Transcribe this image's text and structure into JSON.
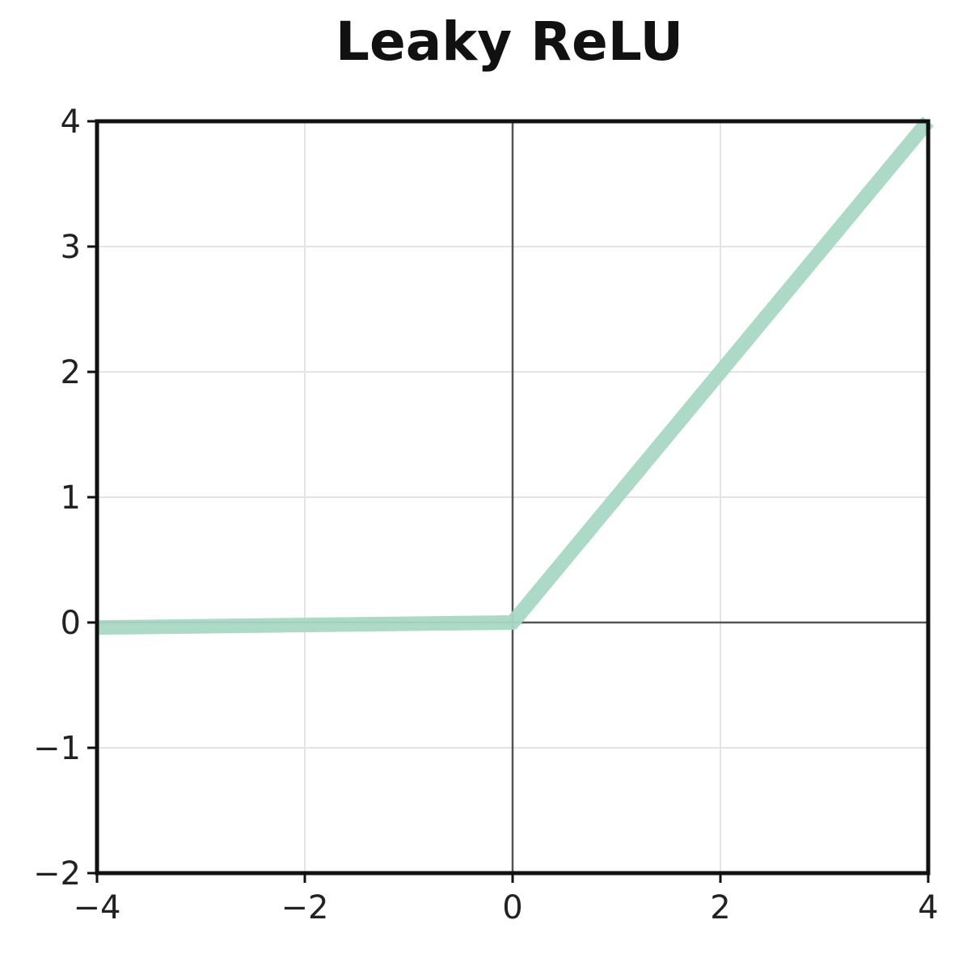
{
  "chart_data": {
    "type": "line",
    "title": "Leaky ReLU",
    "xlabel": "",
    "ylabel": "",
    "xlim": [
      -4,
      4
    ],
    "ylim": [
      -2,
      4
    ],
    "grid": true,
    "xticks": [
      -4,
      -2,
      0,
      2,
      4
    ],
    "yticks": [
      -2,
      -1,
      0,
      1,
      2,
      3,
      4
    ],
    "xtick_labels": [
      "−4",
      "−2",
      "0",
      "2",
      "4"
    ],
    "ytick_labels": [
      "−2",
      "−1",
      "0",
      "1",
      "2",
      "3",
      "4"
    ],
    "series": [
      {
        "x": [
          -4,
          0,
          4
        ],
        "y": [
          -0.04,
          0,
          4
        ],
        "color": "#a8d8c4"
      }
    ],
    "reference_lines": {
      "x": 0,
      "y": 0,
      "color": "#555555"
    }
  }
}
